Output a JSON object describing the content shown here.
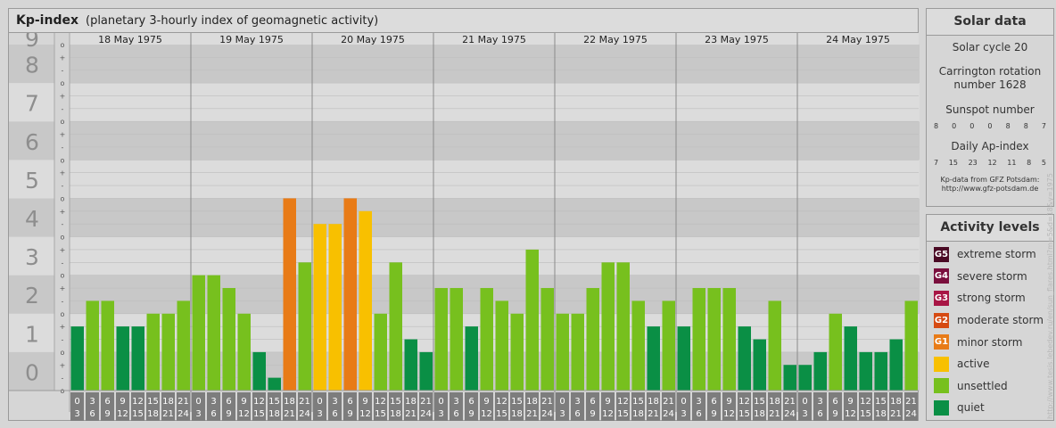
{
  "header": {
    "title": "Kp-index",
    "subtitle": "(planetary 3-hourly index of geomagnetic activity)"
  },
  "chart_data": {
    "type": "bar",
    "title": "Kp-index",
    "subtitle": "(planetary 3-hourly index of geomagnetic activity)",
    "ylim": [
      0,
      9
    ],
    "y_ticks": [
      "0",
      "1",
      "2",
      "3",
      "4",
      "5",
      "6",
      "7",
      "8",
      "9"
    ],
    "sub_ticks": [
      "o",
      "-",
      "+",
      "o",
      "-",
      "+",
      "o",
      "-",
      "+",
      "o",
      "-",
      "+",
      "o",
      "-",
      "+",
      "o",
      "-",
      "+",
      "o",
      "-",
      "+",
      "o",
      "-",
      "+",
      "o",
      "-",
      "+",
      "o"
    ],
    "days": [
      "18 May 1975",
      "19 May 1975",
      "20 May 1975",
      "21 May 1975",
      "22 May 1975",
      "23 May 1975",
      "24 May 1975"
    ],
    "interval_start": [
      "0",
      "3",
      "6",
      "9",
      "12",
      "15",
      "18",
      "21"
    ],
    "interval_end": [
      "3",
      "6",
      "9",
      "12",
      "15",
      "18",
      "21",
      "24"
    ],
    "values": [
      [
        1.667,
        2.333,
        2.333,
        1.667,
        1.667,
        2.0,
        2.0,
        2.333
      ],
      [
        3.0,
        3.0,
        2.667,
        2.0,
        1.0,
        0.333,
        5.0,
        3.333
      ],
      [
        4.333,
        4.333,
        5.0,
        4.667,
        2.0,
        3.333,
        1.333,
        1.0
      ],
      [
        2.667,
        2.667,
        1.667,
        2.667,
        2.333,
        2.0,
        3.667,
        2.667
      ],
      [
        2.0,
        2.0,
        2.667,
        3.333,
        3.333,
        2.333,
        1.667,
        2.333
      ],
      [
        1.667,
        2.667,
        2.667,
        2.667,
        1.667,
        1.333,
        2.333,
        0.667
      ],
      [
        0.667,
        1.0,
        2.0,
        1.667,
        1.0,
        1.0,
        1.333,
        2.333
      ]
    ],
    "colors": {
      "quiet": "#0a8f45",
      "unsettled": "#77c01e",
      "active": "#f8c000",
      "minor": "#e87b17",
      "moderate": "#d64a12",
      "strong": "#a81645",
      "severe": "#7a0f3d",
      "extreme": "#4a0a24"
    }
  },
  "solar": {
    "title": "Solar data",
    "cycle": "Solar cycle 20",
    "carrington_1": "Carrington rotation",
    "carrington_2": "number 1628",
    "sunspot_title": "Sunspot number",
    "sunspots": [
      "8",
      "0",
      "0",
      "0",
      "8",
      "8",
      "7"
    ],
    "ap_title": "Daily Ap-index",
    "ap": [
      "7",
      "15",
      "23",
      "12",
      "11",
      "8",
      "5"
    ],
    "credit_1": "Kp-data from GFZ Potsdam:",
    "credit_2": "http://www.gfz-potsdam.de"
  },
  "activity": {
    "title": "Activity levels",
    "items": [
      {
        "code": "G5",
        "label": "extreme storm",
        "color": "#4a0a24"
      },
      {
        "code": "G4",
        "label": "severe storm",
        "color": "#7a0f3d"
      },
      {
        "code": "G3",
        "label": "strong storm",
        "color": "#a81645"
      },
      {
        "code": "G2",
        "label": "moderate storm",
        "color": "#d64a12"
      },
      {
        "code": "G1",
        "label": "minor storm",
        "color": "#e87b17"
      },
      {
        "code": "",
        "label": "active",
        "color": "#f8c000"
      },
      {
        "code": "",
        "label": "unsettled",
        "color": "#77c01e"
      },
      {
        "code": "",
        "label": "quiet",
        "color": "#0a8f45"
      }
    ]
  },
  "watermark": "http://www.tesis.lebedev.ru/en/sun_flares.html?m=5&d=18&y=1975"
}
